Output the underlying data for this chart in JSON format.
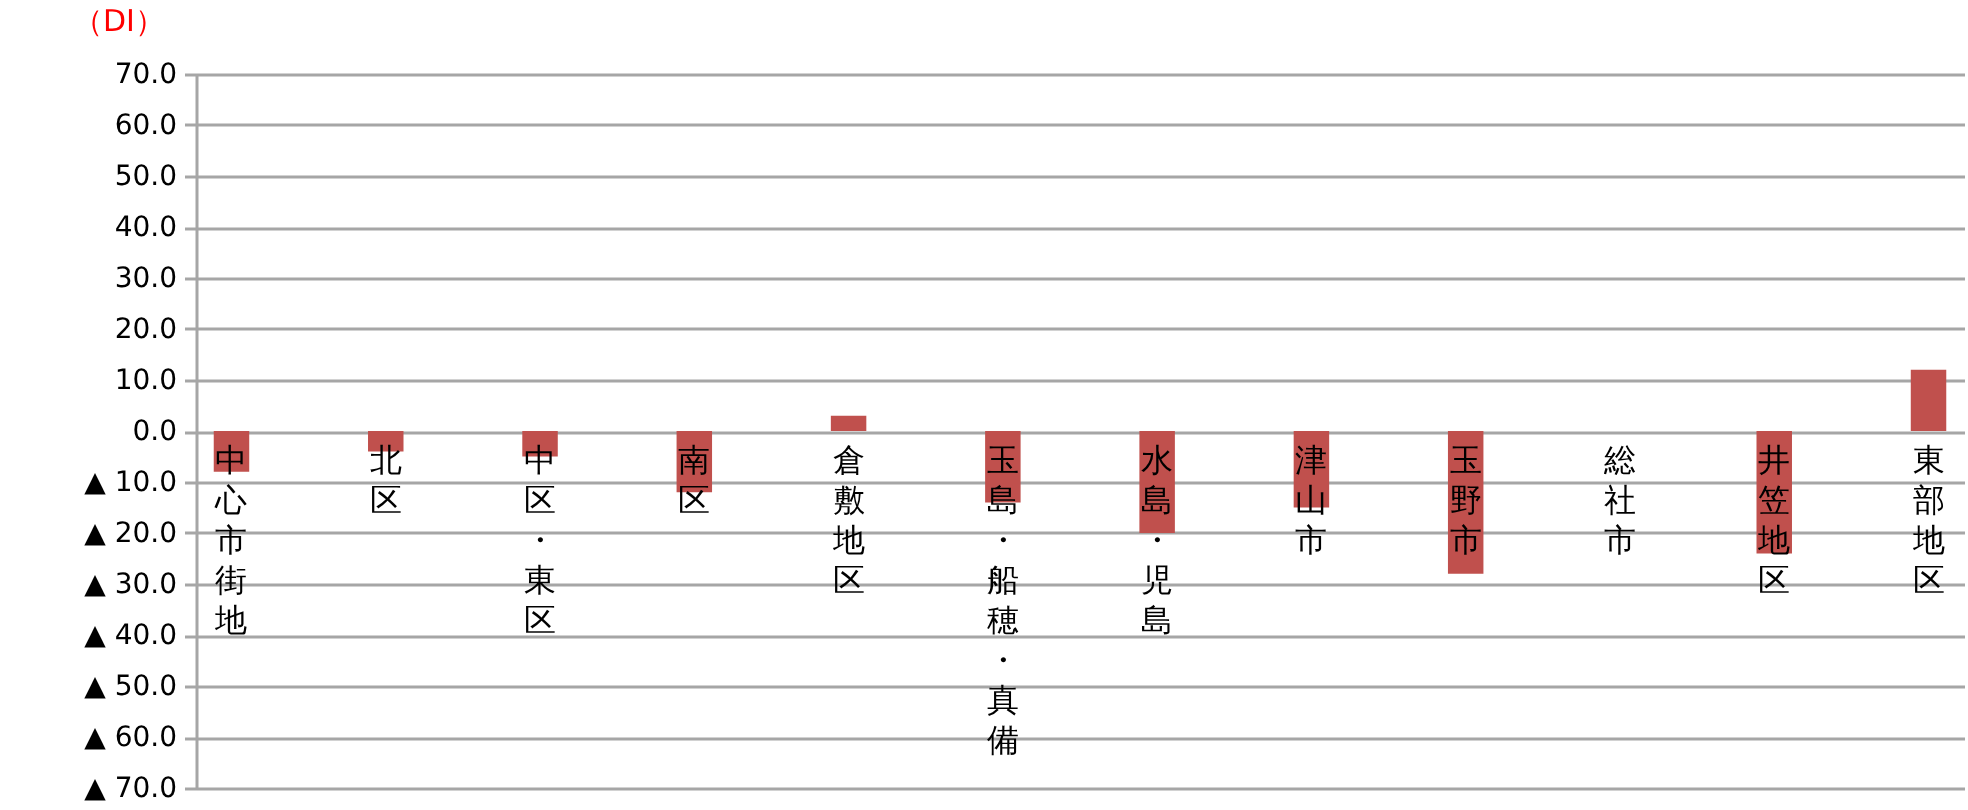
{
  "chart_data": {
    "type": "bar",
    "ylabel": "（DI）",
    "categories": [
      "中心市街地",
      "北区",
      "中区・東区",
      "南区",
      "倉敷地区",
      "玉島・船穂・真備",
      "水島・児島",
      "津山市",
      "玉野市",
      "総社市",
      "井笠地区",
      "東部地区"
    ],
    "values": [
      -8,
      -4,
      -5,
      -12,
      3,
      -14,
      -20,
      -15,
      -28,
      0,
      -24,
      12
    ],
    "color": "#c0504d",
    "ylim": [
      -70,
      70
    ],
    "yticks": [
      {
        "value": -70,
        "label": "▲ 70.0"
      },
      {
        "value": -60,
        "label": "▲ 60.0"
      },
      {
        "value": -50,
        "label": "▲ 50.0"
      },
      {
        "value": -40,
        "label": "▲ 40.0"
      },
      {
        "value": -30,
        "label": "▲ 30.0"
      },
      {
        "value": -20,
        "label": "▲ 20.0"
      },
      {
        "value": -10,
        "label": "▲ 10.0"
      },
      {
        "value": 0,
        "label": "0.0"
      },
      {
        "value": 10,
        "label": "10.0"
      },
      {
        "value": 20,
        "label": "20.0"
      },
      {
        "value": 30,
        "label": "30.0"
      },
      {
        "value": 40,
        "label": "40.0"
      },
      {
        "value": 50,
        "label": "50.0"
      },
      {
        "value": 60,
        "label": "60.0"
      },
      {
        "value": 70,
        "label": "70.0"
      }
    ],
    "grid": "y"
  }
}
